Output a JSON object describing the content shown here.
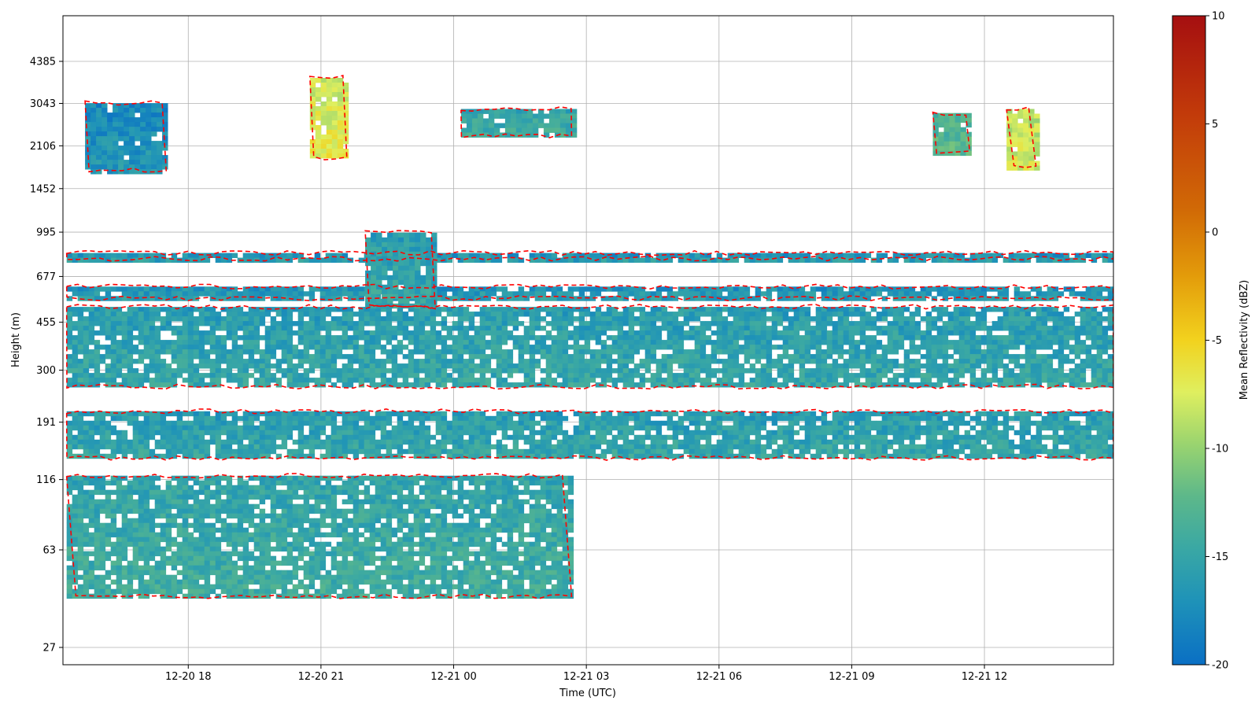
{
  "chart_data": {
    "type": "heatmap",
    "title": "",
    "xlabel": "Time (UTC)",
    "ylabel": "Height (m)",
    "x_ticks": [
      "12-20 18",
      "12-20 21",
      "12-21 00",
      "12-21 03",
      "12-21 06",
      "12-21 09",
      "12-21 12"
    ],
    "x_range": [
      "12-20 15:10",
      "12-21 14:55"
    ],
    "y_ticks": [
      27,
      63,
      116,
      191,
      300,
      455,
      677,
      995,
      1452,
      2106,
      3043,
      4385
    ],
    "y_scale": "log",
    "grid": true,
    "colorbar": {
      "label": "Mean Reflectivity (dBZ)",
      "ticks": [
        -20,
        -15,
        -10,
        -5,
        0,
        5,
        10
      ],
      "range": [
        -20,
        10
      ],
      "colormap": [
        "#0a6fc4",
        "#1f93b8",
        "#3aa8a4",
        "#5db88a",
        "#9ad46f",
        "#dfef5f",
        "#f2d21e",
        "#e39b0a",
        "#d16a06",
        "#c23a0a",
        "#a50f10"
      ]
    },
    "contour": {
      "style": "dashed",
      "color": "#ff0000"
    },
    "layers": [
      {
        "time_start": "12-20 15:15",
        "time_end": "12-21 14:55",
        "height_bottom": 260,
        "height_top": 520,
        "mean_dbz": -15
      },
      {
        "time_start": "12-20 15:15",
        "time_end": "12-21 14:55",
        "height_bottom": 140,
        "height_top": 210,
        "mean_dbz": -15
      },
      {
        "time_start": "12-20 15:15",
        "time_end": "12-21 02:40",
        "height_bottom": 42,
        "height_top": 120,
        "mean_dbz": -14
      },
      {
        "time_start": "12-20 15:15",
        "time_end": "12-21 14:55",
        "height_bottom": 560,
        "height_top": 620,
        "mean_dbz": -16
      },
      {
        "time_start": "12-20 15:15",
        "time_end": "12-21 14:55",
        "height_bottom": 790,
        "height_top": 830,
        "mean_dbz": -16
      },
      {
        "time_start": "12-20 22:00",
        "time_end": "12-20 23:35",
        "height_bottom": 520,
        "height_top": 990,
        "mean_dbz": -15
      },
      {
        "time_start": "12-20 15:40",
        "time_end": "12-20 17:30",
        "height_bottom": 1700,
        "height_top": 3050,
        "mean_dbz": -17
      },
      {
        "time_start": "12-20 20:45",
        "time_end": "12-20 21:35",
        "height_bottom": 1900,
        "height_top": 3800,
        "mean_dbz": -5
      },
      {
        "time_start": "12-21 00:10",
        "time_end": "12-21 02:40",
        "height_bottom": 2300,
        "height_top": 2900,
        "mean_dbz": -14
      },
      {
        "time_start": "12-21 10:50",
        "time_end": "12-21 11:40",
        "height_bottom": 2000,
        "height_top": 2800,
        "mean_dbz": -12
      },
      {
        "time_start": "12-21 12:30",
        "time_end": "12-21 13:10",
        "height_bottom": 1750,
        "height_top": 2900,
        "mean_dbz": -6
      }
    ]
  }
}
